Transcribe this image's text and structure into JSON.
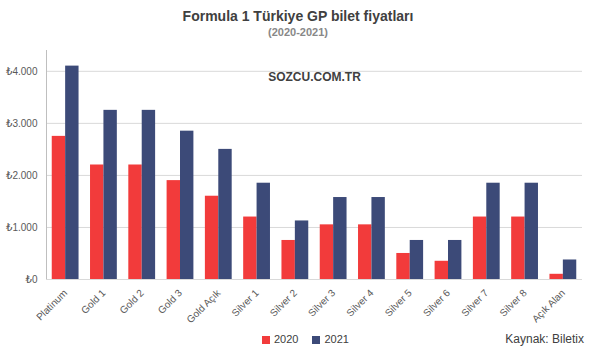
{
  "chart_data": {
    "type": "bar",
    "title": "Formula 1 Türkiye GP bilet fiyatları",
    "subtitle": "(2020-2021)",
    "annotations": [
      "SOZCU.COM.TR",
      "Kaynak: Biletix"
    ],
    "categories": [
      "Platinum",
      "Gold 1",
      "Gold 2",
      "Gold 3",
      "Gold Açık",
      "Silver 1",
      "Silver 2",
      "Silver 3",
      "Silver 4",
      "Silver 5",
      "Silver 6",
      "Silver 7",
      "Silver 8",
      "Açık Alan"
    ],
    "series": [
      {
        "name": "2020",
        "color": "#f23b3b",
        "values": [
          2750,
          2200,
          2200,
          1900,
          1600,
          1200,
          750,
          1050,
          1050,
          500,
          350,
          1200,
          1200,
          100
        ]
      },
      {
        "name": "2021",
        "color": "#3c4a78",
        "values": [
          4100,
          3250,
          3250,
          2850,
          2500,
          1850,
          1125,
          1575,
          1575,
          750,
          750,
          1850,
          1850,
          375
        ]
      }
    ],
    "ylim": [
      0,
      4400
    ],
    "yticks": [
      {
        "value": 0,
        "label": "₺0"
      },
      {
        "value": 1000,
        "label": "₺1.000"
      },
      {
        "value": 2000,
        "label": "₺2.000"
      },
      {
        "value": 3000,
        "label": "₺3.000"
      },
      {
        "value": 4000,
        "label": "₺4.000"
      }
    ],
    "grid": true,
    "legend": "bottom"
  }
}
